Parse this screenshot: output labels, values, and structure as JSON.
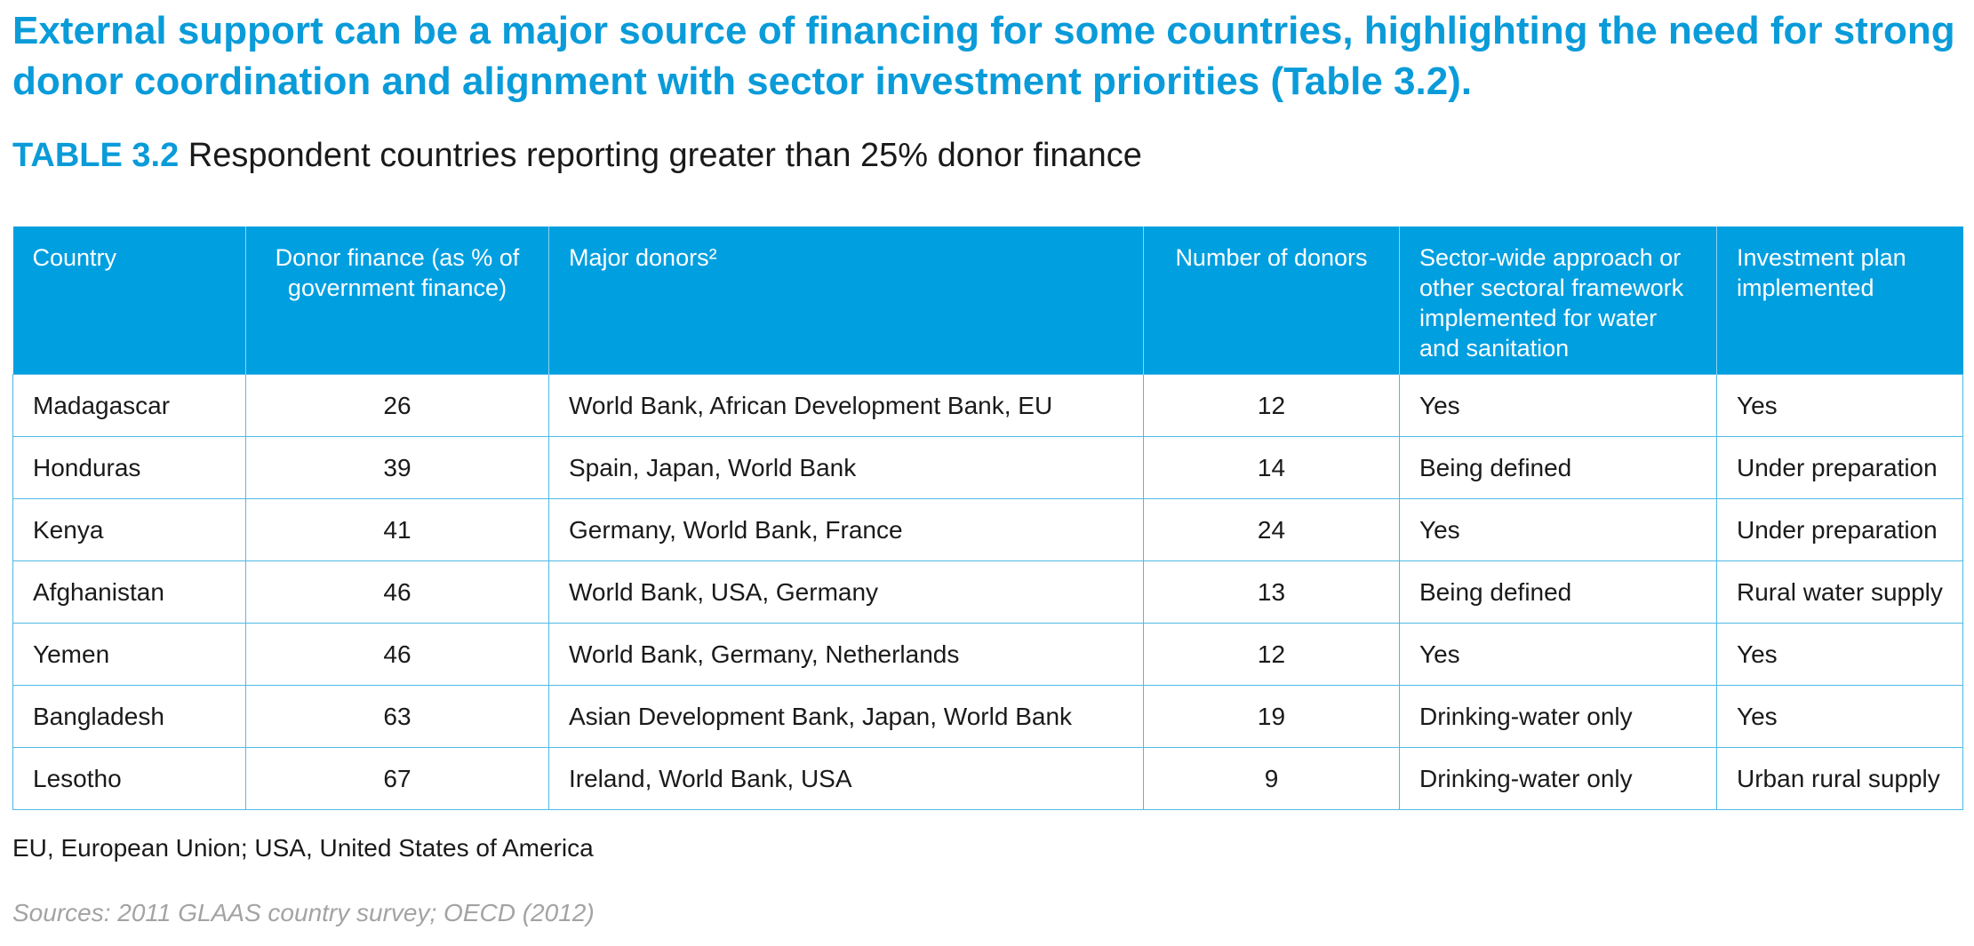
{
  "intro": {
    "text": "External support can be a major source of financing for some countries, highlighting the need for strong donor coordination and alignment with sector investment priorities (Table 3.2)."
  },
  "table_title": {
    "number": "TABLE 3.2",
    "description": " Respondent countries reporting greater than 25% donor finance"
  },
  "table": {
    "headers": [
      "Country",
      "Donor finance (as % of government finance)",
      "Major donors²",
      "Number of donors",
      "Sector-wide approach or other sectoral framework implemented for water and sanitation",
      "Investment plan implemented"
    ],
    "rows": [
      [
        "Madagascar",
        "26",
        "World Bank, African Development Bank, EU",
        "12",
        "Yes",
        "Yes"
      ],
      [
        "Honduras",
        "39",
        "Spain, Japan, World Bank",
        "14",
        "Being defined",
        "Under preparation"
      ],
      [
        "Kenya",
        "41",
        "Germany, World Bank, France",
        "24",
        "Yes",
        "Under preparation"
      ],
      [
        "Afghanistan",
        "46",
        "World Bank, USA, Germany",
        "13",
        "Being defined",
        "Rural water supply"
      ],
      [
        "Yemen",
        "46",
        "World Bank, Germany, Netherlands",
        "12",
        "Yes",
        "Yes"
      ],
      [
        "Bangladesh",
        "63",
        "Asian Development Bank, Japan, World Bank",
        "19",
        "Drinking-water only",
        "Yes"
      ],
      [
        "Lesotho",
        "67",
        "Ireland, World Bank, USA",
        "9",
        "Drinking-water only",
        "Urban rural supply"
      ]
    ]
  },
  "footnote": "EU, European Union; USA, United States of America",
  "sources": "Sources: 2011 GLAAS country survey; OECD (2012)",
  "colors": {
    "accent": "#0a9bd9",
    "header_bg": "#009fe0",
    "border": "#4fb9e6",
    "sources_text": "#a3a3a3"
  }
}
